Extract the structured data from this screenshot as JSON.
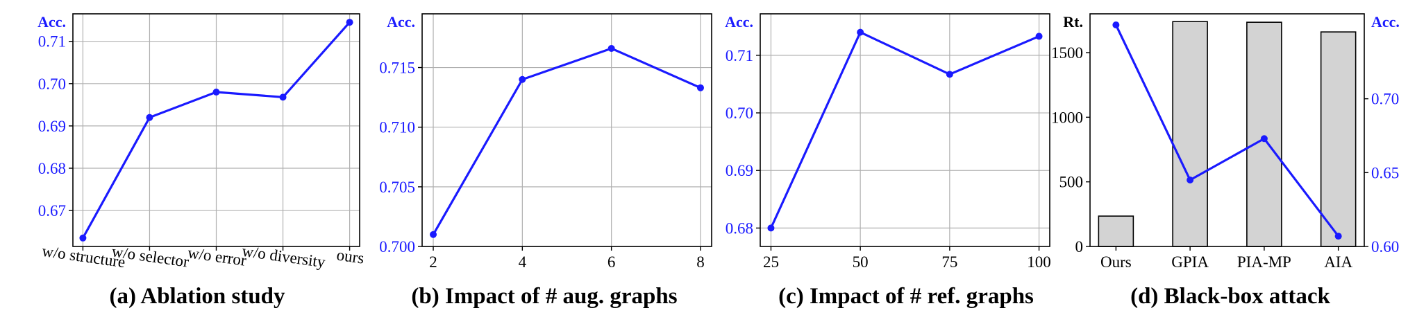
{
  "chart_data": [
    {
      "type": "line",
      "title": "(a) Ablation study",
      "ylabel": "Acc.",
      "categories": [
        "w/o structure",
        "w/o selector",
        "w/o error",
        "w/o diversity",
        "ours"
      ],
      "values": [
        0.6635,
        0.692,
        0.698,
        0.6968,
        0.7145
      ],
      "ylim": [
        0.6615,
        0.7165
      ],
      "yticks": [
        0.67,
        0.68,
        0.69,
        0.7,
        0.71
      ],
      "ytick_labels": [
        "0.67",
        "0.68",
        "0.69",
        "0.70",
        "0.71"
      ],
      "grid": true
    },
    {
      "type": "line",
      "title": "(b) Impact of # aug. graphs",
      "ylabel": "Acc.",
      "x": [
        2,
        4,
        6,
        8
      ],
      "xtick_labels": [
        "2",
        "4",
        "6",
        "8"
      ],
      "values": [
        0.701,
        0.714,
        0.7166,
        0.7133
      ],
      "xlim": [
        1.75,
        8.25
      ],
      "ylim": [
        0.7,
        0.7195
      ],
      "yticks": [
        0.7,
        0.705,
        0.71,
        0.715
      ],
      "ytick_labels": [
        "0.700",
        "0.705",
        "0.710",
        "0.715"
      ],
      "grid": true
    },
    {
      "type": "line",
      "title": "(c) Impact of # ref. graphs",
      "ylabel": "Acc.",
      "x": [
        25,
        50,
        75,
        100
      ],
      "xtick_labels": [
        "25",
        "50",
        "75",
        "100"
      ],
      "values": [
        0.68,
        0.714,
        0.7067,
        0.7133
      ],
      "xlim": [
        22,
        103
      ],
      "ylim": [
        0.6768,
        0.7172
      ],
      "yticks": [
        0.68,
        0.69,
        0.7,
        0.71
      ],
      "ytick_labels": [
        "0.68",
        "0.69",
        "0.70",
        "0.71"
      ],
      "grid": true
    },
    {
      "type": "bar",
      "title": "(d) Black-box attack",
      "ylabel": "Rt.",
      "y2label": "Acc.",
      "categories": [
        "Ours",
        "GPIA",
        "PIA-MP",
        "AIA"
      ],
      "series": [
        {
          "name": "Rt.",
          "type": "bar",
          "values": [
            235,
            1740,
            1735,
            1660
          ]
        },
        {
          "name": "Acc.",
          "type": "line",
          "values": [
            0.75,
            0.645,
            0.673,
            0.607
          ]
        }
      ],
      "ylim": [
        0,
        1800
      ],
      "yticks": [
        0,
        500,
        1000,
        1500
      ],
      "ytick_labels": [
        "0",
        "500",
        "1000",
        "1500"
      ],
      "y2lim": [
        0.6,
        0.7575
      ],
      "y2ticks": [
        0.6,
        0.65,
        0.7
      ],
      "y2tick_labels": [
        "0.60",
        "0.65",
        "0.70"
      ],
      "grid": false
    }
  ],
  "colors": {
    "line": "#1a1aff",
    "bar_fill": "#d3d3d3",
    "bar_edge": "#000000",
    "grid": "#b0b0b0",
    "axis_blue": "#1a1aff"
  }
}
